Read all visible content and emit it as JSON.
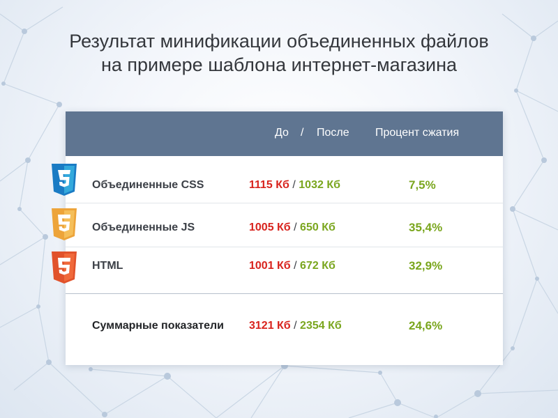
{
  "title": {
    "line1": "Результат минификации объединенных файлов",
    "line2": "на примере шаблона интернет-магазина"
  },
  "table": {
    "headers": {
      "before": "До",
      "separator": "/",
      "after": "После",
      "percent": "Процент сжатия"
    },
    "rows": [
      {
        "icon": "css3-icon",
        "label": "Объединенные CSS",
        "before": "1115 Кб",
        "after": "1032 Кб",
        "percent": "7,5%"
      },
      {
        "icon": "js-icon",
        "label": "Объединенные JS",
        "before": "1005 Кб",
        "after": "650 Кб",
        "percent": "35,4%"
      },
      {
        "icon": "html5-icon",
        "label": "HTML",
        "before": "1001 Кб",
        "after": "672 Кб",
        "percent": "32,9%"
      }
    ],
    "total": {
      "label": "Суммарные показатели",
      "before": "3121 Кб",
      "after": "2354 Кб",
      "percent": "24,6%"
    },
    "row_separator": "/"
  },
  "colors": {
    "header_bg": "#5f7591",
    "before_red": "#d8231d",
    "after_green": "#7aa61e",
    "css_blue": "#1a7bc4",
    "js_orange": "#eda43a",
    "html_orange": "#e1522b"
  }
}
